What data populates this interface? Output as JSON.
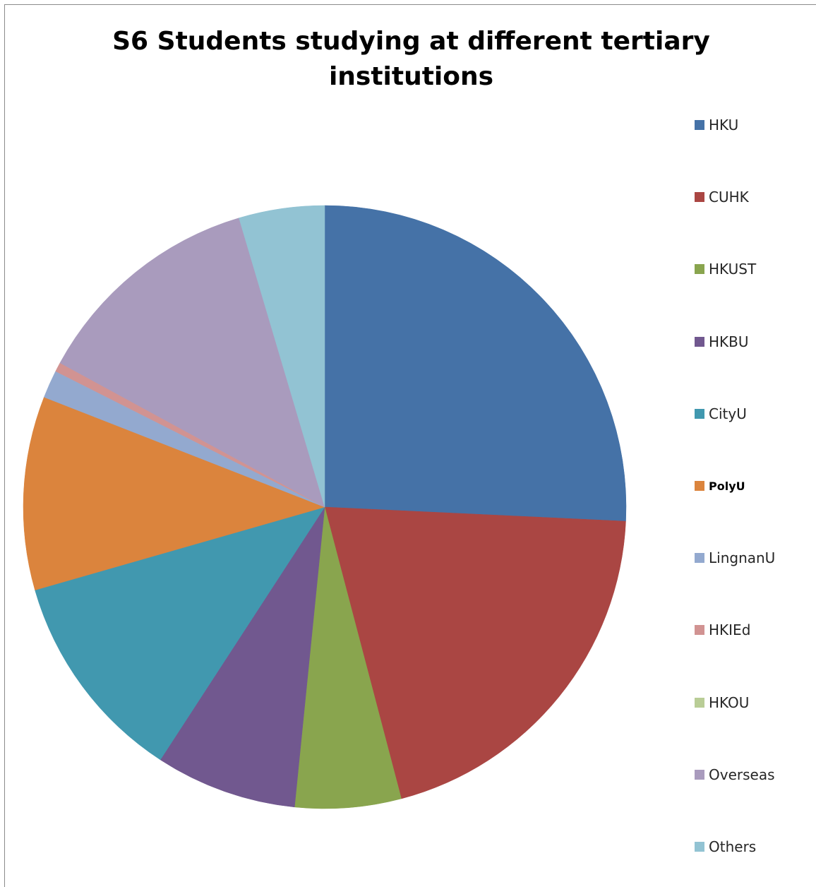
{
  "chart_data": {
    "type": "pie",
    "title": "S6 Students studying at different tertiary institutions",
    "legend_position": "right",
    "categories": [
      "HKU",
      "CUHK",
      "HKUST",
      "HKBU",
      "CityU",
      "PolyU",
      "LingnanU",
      "HKIEd",
      "HKOU",
      "Overseas",
      "Others"
    ],
    "values": [
      25.8,
      20.2,
      5.7,
      7.6,
      11.4,
      10.4,
      1.5,
      0.5,
      0.0,
      12.5,
      4.6
    ],
    "colors": [
      "#4572A7",
      "#AA4643",
      "#89A54E",
      "#71588F",
      "#4198AF",
      "#DB843D",
      "#93A9CF",
      "#D19392",
      "#B9CD96",
      "#A99BBD",
      "#92C3D3"
    ],
    "start_angle": "12 o'clock",
    "direction": "clockwise",
    "data_labels": false
  }
}
